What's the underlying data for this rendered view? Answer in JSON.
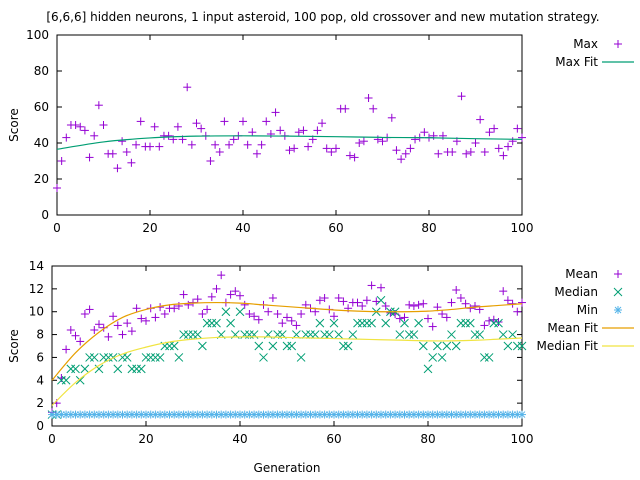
{
  "figure_title": "[6,6,6] hidden neurons, 1 input asteroid, 100 pop, old crossover and new mutation strategy.",
  "chart_data": [
    {
      "type": "scatter",
      "xlabel": "",
      "ylabel": "Score",
      "xlim": [
        0,
        100
      ],
      "ylim": [
        0,
        100
      ],
      "xticks": [
        0,
        20,
        40,
        60,
        80,
        100
      ],
      "yticks": [
        0,
        20,
        40,
        60,
        80,
        100
      ],
      "legend": "outside-right",
      "grid": false,
      "series": [
        {
          "name": "Max",
          "kind": "points",
          "marker": "plus",
          "color": "#9400d3",
          "x": [
            0,
            1,
            2,
            3,
            4,
            5,
            6,
            7,
            8,
            9,
            10,
            11,
            12,
            13,
            14,
            15,
            16,
            17,
            18,
            19,
            20,
            21,
            22,
            23,
            24,
            25,
            26,
            27,
            28,
            29,
            30,
            31,
            32,
            33,
            34,
            35,
            36,
            37,
            38,
            39,
            40,
            41,
            42,
            43,
            44,
            45,
            46,
            47,
            48,
            49,
            50,
            51,
            52,
            53,
            54,
            55,
            56,
            57,
            58,
            59,
            60,
            61,
            62,
            63,
            64,
            65,
            66,
            67,
            68,
            69,
            70,
            71,
            72,
            73,
            74,
            75,
            76,
            77,
            78,
            79,
            80,
            81,
            82,
            83,
            84,
            85,
            86,
            87,
            88,
            89,
            90,
            91,
            92,
            93,
            94,
            95,
            96,
            97,
            98,
            99,
            100
          ],
          "y": [
            15,
            30,
            43,
            50,
            50,
            49,
            47,
            32,
            44,
            61,
            50,
            34,
            34,
            26,
            41,
            35,
            29,
            39,
            52,
            38,
            38,
            49,
            38,
            44,
            44,
            42,
            49,
            42,
            71,
            39,
            51,
            48,
            44,
            30,
            39,
            35,
            52,
            39,
            42,
            44,
            52,
            39,
            46,
            34,
            39,
            52,
            45,
            57,
            47,
            44,
            36,
            37,
            46,
            47,
            38,
            42,
            47,
            51,
            37,
            35,
            37,
            59,
            59,
            33,
            32,
            40,
            41,
            65,
            59,
            42,
            41,
            43,
            54,
            36,
            31,
            34,
            37,
            42,
            43,
            46,
            43,
            44,
            34,
            44,
            35,
            35,
            41,
            66,
            34,
            35,
            40,
            53,
            35,
            46,
            48,
            37,
            33,
            38,
            41,
            48,
            43
          ]
        },
        {
          "name": "Max Fit",
          "kind": "line",
          "color": "#009e73",
          "x": [
            0,
            10,
            20,
            30,
            40,
            50,
            60,
            70,
            80,
            90,
            100
          ],
          "y": [
            36.5,
            40.6,
            42.8,
            43.8,
            44.0,
            43.8,
            43.5,
            43.1,
            42.9,
            42.4,
            42.0
          ]
        }
      ]
    },
    {
      "type": "scatter",
      "xlabel": "Generation",
      "ylabel": "Score",
      "xlim": [
        0,
        100
      ],
      "ylim": [
        0,
        14
      ],
      "xticks": [
        0,
        20,
        40,
        60,
        80,
        100
      ],
      "yticks": [
        0,
        2,
        4,
        6,
        8,
        10,
        12,
        14
      ],
      "legend": "outside-right",
      "grid": false,
      "series": [
        {
          "name": "Mean",
          "kind": "points",
          "marker": "plus",
          "color": "#9400d3",
          "x": [
            0,
            1,
            2,
            3,
            4,
            5,
            6,
            7,
            8,
            9,
            10,
            11,
            12,
            13,
            14,
            15,
            16,
            17,
            18,
            19,
            20,
            21,
            22,
            23,
            24,
            25,
            26,
            27,
            28,
            29,
            30,
            31,
            32,
            33,
            34,
            35,
            36,
            37,
            38,
            39,
            40,
            41,
            42,
            43,
            44,
            45,
            46,
            47,
            48,
            49,
            50,
            51,
            52,
            53,
            54,
            55,
            56,
            57,
            58,
            59,
            60,
            61,
            62,
            63,
            64,
            65,
            66,
            67,
            68,
            69,
            70,
            71,
            72,
            73,
            74,
            75,
            76,
            77,
            78,
            79,
            80,
            81,
            82,
            83,
            84,
            85,
            86,
            87,
            88,
            89,
            90,
            91,
            92,
            93,
            94,
            95,
            96,
            97,
            98,
            99,
            100
          ],
          "y": [
            1.2,
            2.0,
            4.2,
            6.7,
            8.4,
            7.9,
            7.4,
            9.8,
            10.2,
            8.4,
            8.9,
            8.6,
            7.8,
            9.6,
            8.8,
            8.0,
            9.0,
            8.3,
            10.3,
            9.4,
            9.2,
            10.3,
            9.5,
            10.4,
            9.8,
            10.3,
            10.3,
            10.5,
            11.5,
            10.6,
            10.8,
            11.1,
            9.8,
            10.2,
            11.3,
            12.0,
            13.2,
            10.8,
            11.5,
            11.8,
            11.4,
            10.6,
            9.8,
            9.6,
            9.3,
            10.6,
            10.0,
            11.2,
            9.8,
            9.0,
            9.5,
            9.2,
            8.8,
            9.8,
            10.6,
            10.3,
            10.0,
            11.0,
            11.2,
            10.2,
            9.6,
            11.2,
            10.9,
            10.3,
            10.8,
            10.8,
            10.5,
            11.0,
            12.3,
            10.9,
            12.1,
            10.5,
            9.9,
            9.8,
            9.4,
            9.5,
            10.6,
            10.5,
            10.6,
            10.7,
            9.4,
            8.7,
            10.4,
            9.8,
            9.5,
            10.8,
            11.9,
            11.2,
            10.7,
            10.3,
            10.5,
            10.2,
            8.8,
            9.2,
            9.3,
            9.1,
            11.8,
            11.0,
            10.7,
            10.0,
            10.8
          ]
        },
        {
          "name": "Median",
          "kind": "points",
          "marker": "x",
          "color": "#009e73",
          "x": [
            0,
            1,
            2,
            3,
            4,
            5,
            6,
            7,
            8,
            9,
            10,
            11,
            12,
            13,
            14,
            15,
            16,
            17,
            18,
            19,
            20,
            21,
            22,
            23,
            24,
            25,
            26,
            27,
            28,
            29,
            30,
            31,
            32,
            33,
            34,
            35,
            36,
            37,
            38,
            39,
            40,
            41,
            42,
            43,
            44,
            45,
            46,
            47,
            48,
            49,
            50,
            51,
            52,
            53,
            54,
            55,
            56,
            57,
            58,
            59,
            60,
            61,
            62,
            63,
            64,
            65,
            66,
            67,
            68,
            69,
            70,
            71,
            72,
            73,
            74,
            75,
            76,
            77,
            78,
            79,
            80,
            81,
            82,
            83,
            84,
            85,
            86,
            87,
            88,
            89,
            90,
            91,
            92,
            93,
            94,
            95,
            96,
            97,
            98,
            99,
            100
          ],
          "y": [
            1,
            1,
            4,
            4,
            5,
            5,
            4,
            5,
            6,
            6,
            5,
            6,
            6,
            6,
            5,
            6,
            6,
            5,
            5,
            5,
            6,
            6,
            6,
            6,
            7,
            7,
            7,
            6,
            8,
            8,
            8,
            8,
            7,
            9,
            9,
            9,
            8,
            10,
            9,
            8,
            10,
            8,
            8,
            8,
            7,
            6,
            8,
            7,
            8,
            8,
            7,
            7,
            8,
            6,
            8,
            8,
            8,
            9,
            8,
            8,
            9,
            8,
            7,
            7,
            8,
            9,
            9,
            9,
            9,
            10,
            11,
            9,
            10,
            10,
            8,
            9,
            8,
            8,
            9,
            7,
            5,
            6,
            7,
            6,
            7,
            8,
            7,
            9,
            9,
            9,
            8,
            8,
            6,
            6,
            9,
            9,
            8,
            7,
            8,
            7,
            7
          ]
        },
        {
          "name": "Min",
          "kind": "points",
          "marker": "star",
          "color": "#56b4e9",
          "x": [
            0,
            1,
            2,
            3,
            4,
            5,
            6,
            7,
            8,
            9,
            10,
            11,
            12,
            13,
            14,
            15,
            16,
            17,
            18,
            19,
            20,
            21,
            22,
            23,
            24,
            25,
            26,
            27,
            28,
            29,
            30,
            31,
            32,
            33,
            34,
            35,
            36,
            37,
            38,
            39,
            40,
            41,
            42,
            43,
            44,
            45,
            46,
            47,
            48,
            49,
            50,
            51,
            52,
            53,
            54,
            55,
            56,
            57,
            58,
            59,
            60,
            61,
            62,
            63,
            64,
            65,
            66,
            67,
            68,
            69,
            70,
            71,
            72,
            73,
            74,
            75,
            76,
            77,
            78,
            79,
            80,
            81,
            82,
            83,
            84,
            85,
            86,
            87,
            88,
            89,
            90,
            91,
            92,
            93,
            94,
            95,
            96,
            97,
            98,
            99,
            100
          ],
          "y": [
            1,
            1,
            1,
            1,
            1,
            1,
            1,
            1,
            1,
            1,
            1,
            1,
            1,
            1,
            1,
            1,
            1,
            1,
            1,
            1,
            1,
            1,
            1,
            1,
            1,
            1,
            1,
            1,
            1,
            1,
            1,
            1,
            1,
            1,
            1,
            1,
            1,
            1,
            1,
            1,
            1,
            1,
            1,
            1,
            1,
            1,
            1,
            1,
            1,
            1,
            1,
            1,
            1,
            1,
            1,
            1,
            1,
            1,
            1,
            1,
            1,
            1,
            1,
            1,
            1,
            1,
            1,
            1,
            1,
            1,
            1,
            1,
            1,
            1,
            1,
            1,
            1,
            1,
            1,
            1,
            1,
            1,
            1,
            1,
            1,
            1,
            1,
            1,
            1,
            1,
            1,
            1,
            1,
            1,
            1,
            1,
            1,
            1,
            1,
            1,
            1
          ]
        },
        {
          "name": "Mean Fit",
          "kind": "line",
          "color": "#e69f00",
          "x": [
            0,
            5,
            10,
            15,
            20,
            25,
            30,
            35,
            40,
            45,
            50,
            55,
            60,
            65,
            70,
            75,
            80,
            85,
            90,
            95,
            100
          ],
          "y": [
            4.0,
            6.4,
            8.2,
            9.5,
            10.2,
            10.6,
            10.75,
            10.8,
            10.75,
            10.6,
            10.45,
            10.3,
            10.15,
            10.05,
            10.0,
            10.0,
            10.05,
            10.2,
            10.4,
            10.55,
            10.7
          ]
        },
        {
          "name": "Median Fit",
          "kind": "line",
          "color": "#f0e442",
          "x": [
            0,
            5,
            10,
            15,
            20,
            25,
            30,
            35,
            40,
            45,
            50,
            55,
            60,
            65,
            70,
            75,
            80,
            85,
            90,
            95,
            100
          ],
          "y": [
            1.8,
            3.8,
            5.3,
            6.3,
            6.9,
            7.35,
            7.6,
            7.75,
            7.8,
            7.8,
            7.75,
            7.7,
            7.65,
            7.6,
            7.55,
            7.5,
            7.45,
            7.45,
            7.5,
            7.6,
            7.7
          ]
        }
      ]
    }
  ]
}
